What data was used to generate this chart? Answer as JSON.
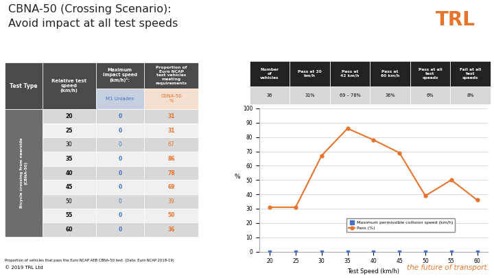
{
  "title_line1": "CBNA-50 (Crossing Scenario):",
  "title_line2": "Avoid impact at all test speeds",
  "title_color": "#222222",
  "bg_color": "#ffffff",
  "orange_color": "#E8732A",
  "header_bg": "#4a4a4a",
  "header_text": "#ffffff",
  "subheader_bg": "#6d6d6d",
  "row_bg_light": "#f0f0f0",
  "row_bg_dark": "#d8d8d8",
  "blue_text": "#4472C4",
  "speeds": [
    20,
    25,
    30,
    35,
    40,
    45,
    50,
    55,
    60
  ],
  "max_impact": [
    0,
    0,
    0,
    0,
    0,
    0,
    0,
    0,
    0
  ],
  "pass_pct": [
    31,
    31,
    67,
    86,
    78,
    69,
    39,
    50,
    36
  ],
  "bold_rows": [
    0,
    1,
    3,
    4,
    5,
    7,
    8
  ],
  "summary_headers": [
    "Number\nof\nvehicles",
    "Pass at 20\nkm/h",
    "Pass at\n42 km/h",
    "Pass at\n60 km/h",
    "Pass at all\ntest\nspeeds",
    "Fail at all\ntest\nspeeds"
  ],
  "summary_values": [
    "36",
    "31%",
    "69 – 78%",
    "36%",
    "6%",
    "8%"
  ],
  "chart_xlabel": "Test Speed (km/h)",
  "chart_ylabel": "%",
  "chart_ylim": [
    0,
    100
  ],
  "chart_yticks": [
    0,
    10,
    20,
    30,
    40,
    50,
    60,
    70,
    80,
    90,
    100
  ],
  "legend_labels": [
    "Maximum permissible collision speed (km/h)",
    "Pass (%)"
  ],
  "footer_text": "© 2019 TRL Ltd",
  "footer_brand": "the future of transport.",
  "divider_color": "#E8732A",
  "chart_line_color": "#E8732A",
  "chart_dot_color": "#4472C4",
  "grid_color": "#cccccc",
  "subheader_blue_bg": "#c5cfe0",
  "subheader_orange_bg": "#f5e0d0"
}
